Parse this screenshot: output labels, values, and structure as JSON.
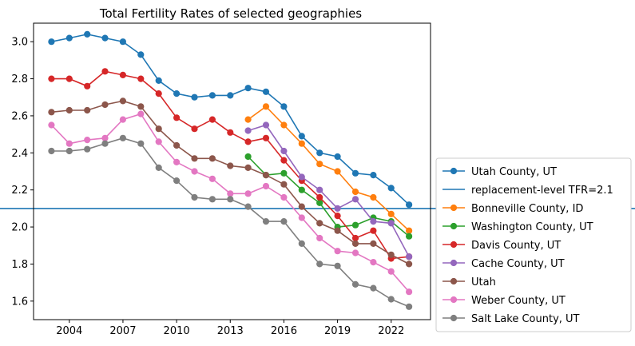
{
  "chart_data": {
    "type": "line",
    "title": "Total Fertility Rates of selected geographies",
    "xlabel": "",
    "ylabel": "",
    "xlim": [
      2002.0,
      2024.2
    ],
    "ylim": [
      1.5,
      3.1
    ],
    "xticks": [
      2004,
      2007,
      2010,
      2013,
      2016,
      2019,
      2022
    ],
    "yticks": [
      1.6,
      1.8,
      2.0,
      2.2,
      2.4,
      2.6,
      2.8,
      3.0
    ],
    "xtick_labels": [
      "2004",
      "2007",
      "2010",
      "2013",
      "2016",
      "2019",
      "2022"
    ],
    "ytick_labels": [
      "1.6",
      "1.8",
      "2.0",
      "2.2",
      "2.4",
      "2.6",
      "2.8",
      "3.0"
    ],
    "grid": false,
    "legend_position": "outside-right",
    "reference_line": {
      "name": "replacement-level TFR=2.1",
      "y": 2.1,
      "color": "#1f77b4"
    },
    "series": [
      {
        "name": "Utah County, UT",
        "color": "#1f77b4",
        "x": [
          2003,
          2004,
          2005,
          2006,
          2007,
          2008,
          2009,
          2010,
          2011,
          2012,
          2013,
          2014,
          2015,
          2016,
          2017,
          2018,
          2019,
          2020,
          2021,
          2022,
          2023
        ],
        "y": [
          3.0,
          3.02,
          3.04,
          3.02,
          3.0,
          2.93,
          2.79,
          2.72,
          2.7,
          2.71,
          2.71,
          2.75,
          2.73,
          2.65,
          2.49,
          2.4,
          2.38,
          2.29,
          2.28,
          2.21,
          2.12
        ]
      },
      {
        "name": "Bonneville County, ID",
        "color": "#ff7f0e",
        "x": [
          2014,
          2015,
          2016,
          2017,
          2018,
          2019,
          2020,
          2021,
          2022,
          2023
        ],
        "y": [
          2.58,
          2.65,
          2.55,
          2.45,
          2.34,
          2.3,
          2.19,
          2.16,
          2.07,
          1.98
        ]
      },
      {
        "name": "Washington County, UT",
        "color": "#2ca02c",
        "x": [
          2014,
          2015,
          2016,
          2017,
          2018,
          2019,
          2020,
          2021,
          2022,
          2023
        ],
        "y": [
          2.38,
          2.28,
          2.29,
          2.2,
          2.13,
          2.0,
          2.01,
          2.05,
          2.03,
          1.95
        ]
      },
      {
        "name": "Davis County, UT",
        "color": "#d62728",
        "x": [
          2003,
          2004,
          2005,
          2006,
          2007,
          2008,
          2009,
          2010,
          2011,
          2012,
          2013,
          2014,
          2015,
          2016,
          2017,
          2018,
          2019,
          2020,
          2021,
          2022,
          2023
        ],
        "y": [
          2.8,
          2.8,
          2.76,
          2.84,
          2.82,
          2.8,
          2.72,
          2.59,
          2.53,
          2.58,
          2.51,
          2.46,
          2.48,
          2.36,
          2.25,
          2.16,
          2.06,
          1.94,
          1.98,
          1.83,
          1.84
        ]
      },
      {
        "name": "Cache County, UT",
        "color": "#9467bd",
        "x": [
          2014,
          2015,
          2016,
          2017,
          2018,
          2019,
          2020,
          2021,
          2022,
          2023
        ],
        "y": [
          2.52,
          2.55,
          2.41,
          2.27,
          2.2,
          2.1,
          2.15,
          2.03,
          2.02,
          1.84
        ]
      },
      {
        "name": "Utah",
        "color": "#8c564b",
        "x": [
          2003,
          2004,
          2005,
          2006,
          2007,
          2008,
          2009,
          2010,
          2011,
          2012,
          2013,
          2014,
          2015,
          2016,
          2017,
          2018,
          2019,
          2020,
          2021,
          2022,
          2023
        ],
        "y": [
          2.62,
          2.63,
          2.63,
          2.66,
          2.68,
          2.65,
          2.53,
          2.44,
          2.37,
          2.37,
          2.33,
          2.32,
          2.28,
          2.23,
          2.11,
          2.02,
          1.98,
          1.91,
          1.91,
          1.85,
          1.8
        ]
      },
      {
        "name": "Weber County, UT",
        "color": "#e377c2",
        "x": [
          2003,
          2004,
          2005,
          2006,
          2007,
          2008,
          2009,
          2010,
          2011,
          2012,
          2013,
          2014,
          2015,
          2016,
          2017,
          2018,
          2019,
          2020,
          2021,
          2022,
          2023
        ],
        "y": [
          2.55,
          2.45,
          2.47,
          2.48,
          2.58,
          2.61,
          2.46,
          2.35,
          2.3,
          2.26,
          2.18,
          2.18,
          2.22,
          2.16,
          2.05,
          1.94,
          1.87,
          1.86,
          1.81,
          1.76,
          1.65
        ]
      },
      {
        "name": "Salt Lake County, UT",
        "color": "#7f7f7f",
        "x": [
          2003,
          2004,
          2005,
          2006,
          2007,
          2008,
          2009,
          2010,
          2011,
          2012,
          2013,
          2014,
          2015,
          2016,
          2017,
          2018,
          2019,
          2020,
          2021,
          2022,
          2023
        ],
        "y": [
          2.41,
          2.41,
          2.42,
          2.45,
          2.48,
          2.45,
          2.32,
          2.25,
          2.16,
          2.15,
          2.15,
          2.11,
          2.03,
          2.03,
          1.91,
          1.8,
          1.79,
          1.69,
          1.67,
          1.61,
          1.57
        ]
      }
    ],
    "legend_order": [
      "Utah County, UT",
      "replacement-level TFR=2.1",
      "Bonneville County, ID",
      "Washington County, UT",
      "Davis County, UT",
      "Cache County, UT",
      "Utah",
      "Weber County, UT",
      "Salt Lake County, UT"
    ]
  }
}
